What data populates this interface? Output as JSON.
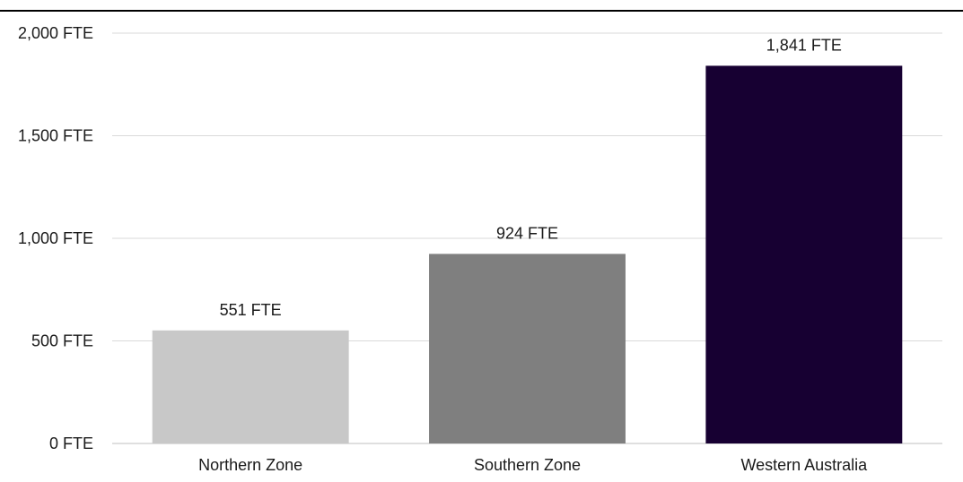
{
  "chart_data": {
    "type": "bar",
    "title": "",
    "xlabel": "",
    "ylabel": "",
    "categories": [
      "Northern Zone",
      "Southern Zone",
      "Western Australia"
    ],
    "values": [
      551,
      924,
      1841
    ],
    "data_labels": [
      "551 FTE",
      "924 FTE",
      "1,841 FTE"
    ],
    "colors": [
      "#c8c8c8",
      "#7f7f7f",
      "#170032"
    ],
    "ylim": [
      0,
      2000
    ],
    "yticks": [
      0,
      500,
      1000,
      1500,
      2000
    ],
    "ytick_labels": [
      "0 FTE",
      "500 FTE",
      "1,000 FTE",
      "1,500 FTE",
      "2,000 FTE"
    ],
    "grid": true,
    "legend": "none"
  }
}
